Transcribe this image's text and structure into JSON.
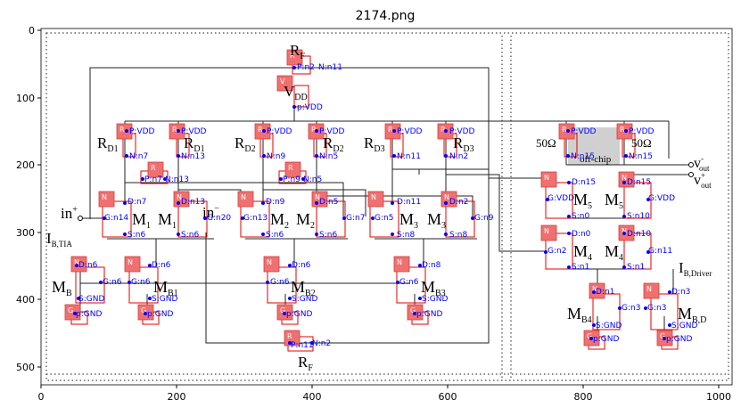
{
  "figure": {
    "title": "2174.png",
    "x_ticks": [
      "0",
      "200",
      "400",
      "600",
      "800",
      "1000"
    ],
    "y_ticks": [
      "0",
      "100",
      "200",
      "300",
      "400",
      "500"
    ]
  },
  "schematic": {
    "labels": {
      "rf_top": "R",
      "rf_top_sub": "F",
      "vdd": "V",
      "vdd_sub": "DD",
      "rd1": "R",
      "rd1_sub": "D1",
      "rd1b": "R",
      "rd1b_sub": "D1",
      "rd2": "R",
      "rd2_sub": "D2",
      "rd2b": "R",
      "rd2b_sub": "D2",
      "rd3": "R",
      "rd3_sub": "D3",
      "rd3b": "R",
      "rd3b_sub": "D3",
      "ohm_left": "50Ω",
      "ohm_right": "50Ω",
      "offchip": "off-chip",
      "vout_neg": "v",
      "vout_neg_sup": "-",
      "vout_neg_sub": "out",
      "vout_pos": "v",
      "vout_pos_sup": "+",
      "vout_pos_sub": "out",
      "in_pos": "in",
      "in_pos_sup": "+",
      "in_neg": "in",
      "in_neg_sup": "−",
      "ib_tia": "I",
      "ib_tia_sub": "B,TIA",
      "m1": "M",
      "m1_sub": "1",
      "m1b": "M",
      "m1b_sub": "1",
      "m2": "M",
      "m2_sub": "2",
      "m2b": "M",
      "m2b_sub": "2",
      "m3": "M",
      "m3_sub": "3",
      "m3b": "M",
      "m3b_sub": "3",
      "m5": "M",
      "m5_sub": "5",
      "m5b": "M",
      "m5b_sub": "5",
      "m4": "M",
      "m4_sub": "4",
      "m4b": "M",
      "m4b_sub": "4",
      "mb": "M",
      "mb_sub": "B",
      "mb1": "M",
      "mb1_sub": "B1",
      "mb2": "M",
      "mb2_sub": "B2",
      "mb3": "M",
      "mb3_sub": "B3",
      "mb4": "M",
      "mb4_sub": "B4",
      "mbd": "M",
      "mbd_sub": "B,D",
      "ib_driver": "I",
      "ib_driver_sub": "B,Driver",
      "rf_bot": "R",
      "rf_bot_sub": "F"
    },
    "badges": [
      {
        "id": "rf-top",
        "letter": "R"
      },
      {
        "id": "vdd-src",
        "letter": "V"
      },
      {
        "id": "rd1-l",
        "letter": "R"
      },
      {
        "id": "rd1-r",
        "letter": "R"
      },
      {
        "id": "rd2-l",
        "letter": "R"
      },
      {
        "id": "rd2-r",
        "letter": "R"
      },
      {
        "id": "rd3-l",
        "letter": "R"
      },
      {
        "id": "rd3-r",
        "letter": "R"
      },
      {
        "id": "r50-l",
        "letter": "R"
      },
      {
        "id": "r50-r",
        "letter": "R"
      },
      {
        "id": "rf1-small",
        "letter": "R"
      },
      {
        "id": "rf2-small",
        "letter": "R"
      },
      {
        "id": "m1-l",
        "letter": "N"
      },
      {
        "id": "m1-r",
        "letter": "N"
      },
      {
        "id": "m2-l",
        "letter": "N"
      },
      {
        "id": "m2-r",
        "letter": "N"
      },
      {
        "id": "m3-l",
        "letter": "N"
      },
      {
        "id": "m3-r",
        "letter": "N"
      },
      {
        "id": "m5-l",
        "letter": "N"
      },
      {
        "id": "m5-r",
        "letter": "N"
      },
      {
        "id": "m4-l",
        "letter": "N"
      },
      {
        "id": "m4-r",
        "letter": "N"
      },
      {
        "id": "mb",
        "letter": "N"
      },
      {
        "id": "mb1",
        "letter": "N"
      },
      {
        "id": "mb2",
        "letter": "N"
      },
      {
        "id": "mb3",
        "letter": "N"
      },
      {
        "id": "mb4",
        "letter": "N"
      },
      {
        "id": "mbd",
        "letter": "N"
      },
      {
        "id": "gnd-mb",
        "letter": "G"
      },
      {
        "id": "gnd-mb1",
        "letter": "G"
      },
      {
        "id": "gnd-mb2",
        "letter": "G"
      },
      {
        "id": "gnd-mb3",
        "letter": "G"
      },
      {
        "id": "gnd-mb4",
        "letter": "G"
      },
      {
        "id": "gnd-mbd",
        "letter": "G"
      },
      {
        "id": "rf-bot",
        "letter": "R"
      }
    ],
    "nets": {
      "rf_top_n": "N:n11",
      "rf_top_p": "P:n2",
      "vdd_p": "p:VDD",
      "rd1l_p": "P:VDD",
      "rd1l_n": "N:n7",
      "rd1r_p": "P:VDD",
      "rd1r_n": "N:n13",
      "rd2l_p": "P:VDD",
      "rd2l_n": "N:n9",
      "rd2r_p": "P:VDD",
      "rd2r_n": "N:n5",
      "rd3l_p": "P:VDD",
      "rd3l_n": "N:n11",
      "rd3r_p": "P:VDD",
      "rd3r_n": "N:n2",
      "r50l_p": "P:VDD",
      "r50l_n": "N:n15",
      "r50r_p": "P:VDD",
      "r50r_n": "N:n15",
      "rf1_p": "P:n7",
      "rf1_n": "N:n13",
      "rf2_p": "P:n9",
      "rf2_n": "N:n5",
      "m1l_d": "D:n7",
      "m1l_g": "G:n14",
      "m1l_s": "S:n6",
      "m1r_d": "D:n13",
      "m1r_g": "G:n20",
      "m1r_s": "S:n6",
      "m2l_d": "D:n9",
      "m2l_g": "G:n13",
      "m2l_s": "S:n6",
      "m2r_d": "D:n5",
      "m2r_g": "G:n7",
      "m2r_s": "S:n6",
      "m3l_d": "D:n11",
      "m3l_g": "G:n5",
      "m3l_s": "S:n8",
      "m3r_d": "D:n2",
      "m3r_g": "G:n9",
      "m3r_s": "S:n8",
      "m5l_d": "D:n15",
      "m5l_g": "G:VDD",
      "m5l_s": "S:n0",
      "m5r_d": "D:n15",
      "m5r_g": "G:VDD",
      "m5r_s": "S:n10",
      "m4l_d": "D:n0",
      "m4l_g": "G:n2",
      "m4l_s": "S:n1",
      "m4r_d": "D:n10",
      "m4r_g": "G:n11",
      "m4r_s": "S:n1",
      "mb_d": "D:n6",
      "mb_g": "G:n6",
      "mb_s": "S:GND",
      "mb1_d": "D:n6",
      "mb1_g": "G:n6",
      "mb1_s": "S:GND",
      "mb2_d": "D:n6",
      "mb2_g": "G:n6",
      "mb2_s": "S:GND",
      "mb3_d": "D:n8",
      "mb3_g": "G:n6",
      "mb3_s": "S:GND",
      "mb4_d": "D:n1",
      "mb4_g": "G:n3",
      "mb4_s": "S:GND",
      "mbd_d": "D:n3",
      "mbd_g": "G:n3",
      "mbd_s": "S:GND",
      "gnd_mb": "p:GND",
      "gnd_mb1": "p:GND",
      "gnd_mb2": "p:GND",
      "gnd_mb3": "p:GND",
      "gnd_mb4": "p:GND",
      "gnd_mbd": "p:GND",
      "rf_bot_n": "N:n2",
      "rf_bot_p": "P:n11"
    }
  }
}
